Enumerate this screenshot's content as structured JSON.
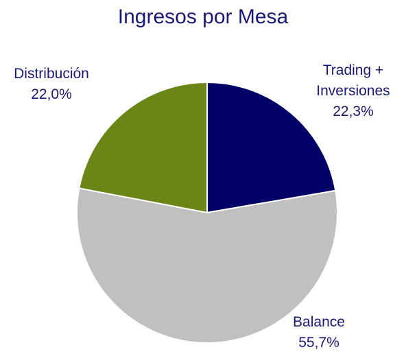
{
  "chart_data": {
    "type": "pie",
    "title": "Ingresos por Mesa",
    "categories": [
      "Trading + Inversiones",
      "Balance",
      "Distribución"
    ],
    "values": [
      22.3,
      55.7,
      22.0
    ],
    "value_labels": [
      "22,3%",
      "55,7%",
      "22,0%"
    ],
    "colors": [
      "#000066",
      "#c0c0c0",
      "#6b8516"
    ]
  }
}
